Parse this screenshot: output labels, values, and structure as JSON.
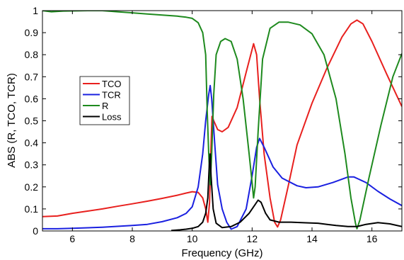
{
  "chart_data": {
    "type": "line",
    "xlabel": "Frequency (GHz)",
    "ylabel": "ABS (R, TCO, TCR)",
    "xlim": [
      5,
      17
    ],
    "ylim": [
      0,
      1
    ],
    "xticks": [
      6,
      8,
      10,
      12,
      14,
      16
    ],
    "yticks": [
      0,
      0.1,
      0.2,
      0.3,
      0.4,
      0.5,
      0.6,
      0.7,
      0.8,
      0.9,
      1
    ],
    "xtick_labels": [
      "6",
      "8",
      "10",
      "12",
      "14",
      "16"
    ],
    "ytick_labels": [
      "0",
      "0.1",
      "0.2",
      "0.3",
      "0.4",
      "0.5",
      "0.6",
      "0.7",
      "0.8",
      "0.9",
      "1"
    ],
    "grid": false,
    "legend_position": "center-left",
    "series": [
      {
        "name": "TCO",
        "color": "#e8201e",
        "points": [
          [
            5,
            0.065
          ],
          [
            5.5,
            0.068
          ],
          [
            6,
            0.08
          ],
          [
            6.5,
            0.09
          ],
          [
            7,
            0.1
          ],
          [
            7.5,
            0.112
          ],
          [
            8,
            0.123
          ],
          [
            8.5,
            0.135
          ],
          [
            9,
            0.148
          ],
          [
            9.5,
            0.162
          ],
          [
            9.8,
            0.172
          ],
          [
            10,
            0.178
          ],
          [
            10.2,
            0.175
          ],
          [
            10.35,
            0.15
          ],
          [
            10.45,
            0.1
          ],
          [
            10.52,
            0.04
          ],
          [
            10.58,
            0.13
          ],
          [
            10.62,
            0.35
          ],
          [
            10.66,
            0.52
          ],
          [
            10.72,
            0.5
          ],
          [
            10.85,
            0.46
          ],
          [
            11,
            0.45
          ],
          [
            11.2,
            0.47
          ],
          [
            11.5,
            0.56
          ],
          [
            11.8,
            0.72
          ],
          [
            12.05,
            0.85
          ],
          [
            12.15,
            0.8
          ],
          [
            12.25,
            0.6
          ],
          [
            12.4,
            0.35
          ],
          [
            12.6,
            0.15
          ],
          [
            12.75,
            0.04
          ],
          [
            12.85,
            0.018
          ],
          [
            12.95,
            0.05
          ],
          [
            13.2,
            0.2
          ],
          [
            13.5,
            0.39
          ],
          [
            14,
            0.58
          ],
          [
            14.5,
            0.74
          ],
          [
            15,
            0.88
          ],
          [
            15.3,
            0.94
          ],
          [
            15.5,
            0.957
          ],
          [
            15.7,
            0.94
          ],
          [
            16,
            0.86
          ],
          [
            16.5,
            0.71
          ],
          [
            17,
            0.565
          ]
        ]
      },
      {
        "name": "TCR",
        "color": "#1a20e0",
        "points": [
          [
            5,
            0.01
          ],
          [
            5.5,
            0.01
          ],
          [
            6,
            0.012
          ],
          [
            7,
            0.017
          ],
          [
            8,
            0.025
          ],
          [
            8.5,
            0.03
          ],
          [
            9,
            0.042
          ],
          [
            9.5,
            0.06
          ],
          [
            9.8,
            0.08
          ],
          [
            10,
            0.11
          ],
          [
            10.2,
            0.2
          ],
          [
            10.35,
            0.35
          ],
          [
            10.45,
            0.5
          ],
          [
            10.55,
            0.62
          ],
          [
            10.6,
            0.66
          ],
          [
            10.65,
            0.6
          ],
          [
            10.75,
            0.4
          ],
          [
            10.85,
            0.21
          ],
          [
            11,
            0.1
          ],
          [
            11.15,
            0.04
          ],
          [
            11.3,
            0.008
          ],
          [
            11.5,
            0.02
          ],
          [
            11.8,
            0.1
          ],
          [
            12,
            0.25
          ],
          [
            12.15,
            0.38
          ],
          [
            12.25,
            0.42
          ],
          [
            12.4,
            0.38
          ],
          [
            12.7,
            0.29
          ],
          [
            13,
            0.24
          ],
          [
            13.5,
            0.205
          ],
          [
            13.8,
            0.196
          ],
          [
            14.2,
            0.2
          ],
          [
            14.7,
            0.22
          ],
          [
            15.2,
            0.245
          ],
          [
            15.4,
            0.245
          ],
          [
            15.8,
            0.22
          ],
          [
            16.2,
            0.18
          ],
          [
            16.6,
            0.145
          ],
          [
            17,
            0.115
          ]
        ]
      },
      {
        "name": "R",
        "color": "#1e8a1e",
        "points": [
          [
            5,
            1
          ],
          [
            5.3,
            0.995
          ],
          [
            5.7,
            0.998
          ],
          [
            6.5,
            1
          ],
          [
            7,
            1
          ],
          [
            7.5,
            0.995
          ],
          [
            8,
            0.99
          ],
          [
            8.5,
            0.985
          ],
          [
            9,
            0.98
          ],
          [
            9.5,
            0.975
          ],
          [
            9.8,
            0.97
          ],
          [
            10,
            0.965
          ],
          [
            10.2,
            0.945
          ],
          [
            10.35,
            0.9
          ],
          [
            10.45,
            0.8
          ],
          [
            10.5,
            0.55
          ],
          [
            10.55,
            0.35
          ],
          [
            10.6,
            0.21
          ],
          [
            10.65,
            0.35
          ],
          [
            10.72,
            0.62
          ],
          [
            10.8,
            0.8
          ],
          [
            10.95,
            0.86
          ],
          [
            11.1,
            0.873
          ],
          [
            11.3,
            0.86
          ],
          [
            11.5,
            0.78
          ],
          [
            11.7,
            0.6
          ],
          [
            11.9,
            0.35
          ],
          [
            12,
            0.22
          ],
          [
            12.05,
            0.15
          ],
          [
            12.1,
            0.2
          ],
          [
            12.2,
            0.45
          ],
          [
            12.35,
            0.78
          ],
          [
            12.6,
            0.92
          ],
          [
            12.9,
            0.948
          ],
          [
            13.2,
            0.948
          ],
          [
            13.6,
            0.935
          ],
          [
            14,
            0.895
          ],
          [
            14.4,
            0.8
          ],
          [
            14.8,
            0.6
          ],
          [
            15.1,
            0.35
          ],
          [
            15.3,
            0.15
          ],
          [
            15.45,
            0.035
          ],
          [
            15.5,
            0.01
          ],
          [
            15.6,
            0.05
          ],
          [
            15.9,
            0.24
          ],
          [
            16.3,
            0.48
          ],
          [
            16.7,
            0.7
          ],
          [
            17,
            0.805
          ]
        ]
      },
      {
        "name": "Loss",
        "color": "#000000",
        "points": [
          [
            9.3,
            0.002
          ],
          [
            9.6,
            0.005
          ],
          [
            9.8,
            0.008
          ],
          [
            10,
            0.012
          ],
          [
            10.2,
            0.02
          ],
          [
            10.35,
            0.04
          ],
          [
            10.45,
            0.08
          ],
          [
            10.52,
            0.15
          ],
          [
            10.57,
            0.3
          ],
          [
            10.6,
            0.35
          ],
          [
            10.63,
            0.25
          ],
          [
            10.7,
            0.1
          ],
          [
            10.8,
            0.035
          ],
          [
            11,
            0.015
          ],
          [
            11.3,
            0.02
          ],
          [
            11.6,
            0.04
          ],
          [
            11.9,
            0.08
          ],
          [
            12.1,
            0.12
          ],
          [
            12.2,
            0.14
          ],
          [
            12.3,
            0.13
          ],
          [
            12.45,
            0.08
          ],
          [
            12.6,
            0.05
          ],
          [
            12.9,
            0.04
          ],
          [
            13.3,
            0.04
          ],
          [
            13.8,
            0.037
          ],
          [
            14.2,
            0.035
          ],
          [
            14.5,
            0.03
          ],
          [
            14.8,
            0.025
          ],
          [
            15.2,
            0.02
          ],
          [
            15.5,
            0.02
          ],
          [
            15.8,
            0.03
          ],
          [
            16.2,
            0.038
          ],
          [
            16.6,
            0.032
          ],
          [
            17,
            0.02
          ]
        ]
      }
    ]
  }
}
